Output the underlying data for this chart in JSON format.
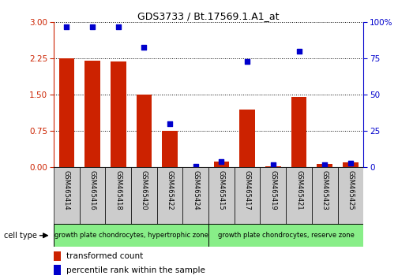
{
  "title": "GDS3733 / Bt.17569.1.A1_at",
  "samples": [
    "GSM465414",
    "GSM465416",
    "GSM465418",
    "GSM465420",
    "GSM465422",
    "GSM465424",
    "GSM465415",
    "GSM465417",
    "GSM465419",
    "GSM465421",
    "GSM465423",
    "GSM465425"
  ],
  "transformed_count": [
    2.25,
    2.2,
    2.19,
    1.5,
    0.75,
    0.01,
    0.12,
    1.2,
    0.03,
    1.45,
    0.07,
    0.1
  ],
  "percentile_rank": [
    97,
    97,
    97,
    83,
    30,
    1,
    4,
    73,
    2,
    80,
    2,
    3
  ],
  "group1_label": "growth plate chondrocytes, hypertrophic zone",
  "group2_label": "growth plate chondrocytes, reserve zone",
  "group1_count": 6,
  "group2_count": 6,
  "ylim_left": [
    0,
    3
  ],
  "ylim_right": [
    0,
    100
  ],
  "yticks_left": [
    0,
    0.75,
    1.5,
    2.25,
    3
  ],
  "yticks_right": [
    0,
    25,
    50,
    75,
    100
  ],
  "bar_color": "#cc2200",
  "dot_color": "#0000cc",
  "group_bg": "#88ee88",
  "sample_bg": "#cccccc",
  "legend_red": "transformed count",
  "legend_blue": "percentile rank within the sample",
  "cell_type_label": "cell type"
}
